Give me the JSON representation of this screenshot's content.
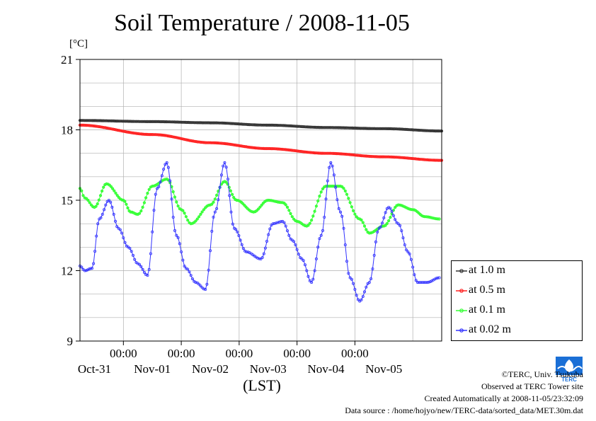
{
  "chart_data": {
    "type": "line",
    "title": "Soil Temperature / 2008-11-05",
    "unit_label": "[°C]",
    "xlabel": "(LST)",
    "ylim": [
      9,
      21
    ],
    "yticks": [
      9,
      12,
      15,
      18,
      21
    ],
    "xlim": [
      "2008-10-30T18:00",
      "2008-11-05T23:59"
    ],
    "x_tick_time_labels": [
      "00:00",
      "00:00",
      "00:00",
      "00:00",
      "00:00"
    ],
    "x_date_labels": [
      "Oct-31",
      "Nov-01",
      "Nov-02",
      "Nov-03",
      "Nov-04",
      "Nov-05"
    ],
    "grid": true,
    "legend_position": "right",
    "series": [
      {
        "name": "at 1.0 m",
        "color": "#333333",
        "x": [
          "2008-10-30T18:00",
          "2008-11-01T00:00",
          "2008-11-02T00:00",
          "2008-11-03T00:00",
          "2008-11-04T00:00",
          "2008-11-05T00:00",
          "2008-11-05T23:59"
        ],
        "y": [
          18.4,
          18.35,
          18.3,
          18.2,
          18.1,
          18.05,
          17.95
        ]
      },
      {
        "name": "at 0.5 m",
        "color": "#ff2020",
        "x": [
          "2008-10-30T18:00",
          "2008-11-01T00:00",
          "2008-11-02T00:00",
          "2008-11-03T00:00",
          "2008-11-04T00:00",
          "2008-11-05T00:00",
          "2008-11-05T23:59"
        ],
        "y": [
          18.2,
          17.8,
          17.45,
          17.2,
          17.0,
          16.85,
          16.7
        ]
      },
      {
        "name": "at 0.1 m",
        "color": "#33ff33",
        "x": [
          "2008-10-30T18:00",
          "2008-10-30T20:00",
          "2008-10-31T00:00",
          "2008-10-31T05:00",
          "2008-10-31T12:00",
          "2008-10-31T15:00",
          "2008-10-31T18:00",
          "2008-11-01T00:00",
          "2008-11-01T06:00",
          "2008-11-01T12:00",
          "2008-11-01T16:00",
          "2008-11-02T00:00",
          "2008-11-02T06:00",
          "2008-11-02T11:00",
          "2008-11-02T18:00",
          "2008-11-03T00:00",
          "2008-11-03T06:00",
          "2008-11-03T12:00",
          "2008-11-03T16:00",
          "2008-11-04T00:00",
          "2008-11-04T06:00",
          "2008-11-04T14:00",
          "2008-11-04T18:00",
          "2008-11-05T00:00",
          "2008-11-05T06:00",
          "2008-11-05T12:00",
          "2008-11-05T17:00",
          "2008-11-05T23:00"
        ],
        "y": [
          15.5,
          15.1,
          14.7,
          15.7,
          15.0,
          14.5,
          14.4,
          15.6,
          15.9,
          14.6,
          14.0,
          14.8,
          15.8,
          15.0,
          14.5,
          15.0,
          14.9,
          14.1,
          13.9,
          15.6,
          15.6,
          14.2,
          13.6,
          13.9,
          14.8,
          14.6,
          14.3,
          14.2
        ]
      },
      {
        "name": "at 0.02 m",
        "color": "#3333ff",
        "x": [
          "2008-10-30T18:00",
          "2008-10-30T20:00",
          "2008-10-30T23:00",
          "2008-10-31T02:00",
          "2008-10-31T06:00",
          "2008-10-31T10:00",
          "2008-10-31T14:00",
          "2008-10-31T18:00",
          "2008-10-31T22:00",
          "2008-11-01T02:00",
          "2008-11-01T06:00",
          "2008-11-01T10:00",
          "2008-11-01T14:00",
          "2008-11-01T18:00",
          "2008-11-01T22:00",
          "2008-11-02T02:00",
          "2008-11-02T06:00",
          "2008-11-02T10:00",
          "2008-11-02T15:00",
          "2008-11-02T21:00",
          "2008-11-03T02:00",
          "2008-11-03T06:00",
          "2008-11-03T10:00",
          "2008-11-03T14:00",
          "2008-11-03T18:00",
          "2008-11-03T22:00",
          "2008-11-04T02:00",
          "2008-11-04T06:00",
          "2008-11-04T10:00",
          "2008-11-04T14:00",
          "2008-11-04T18:00",
          "2008-11-04T22:00",
          "2008-11-05T02:00",
          "2008-11-05T06:00",
          "2008-11-05T10:00",
          "2008-11-05T14:00",
          "2008-11-05T18:00",
          "2008-11-05T23:00"
        ],
        "y": [
          12.2,
          12.0,
          12.1,
          14.2,
          15.0,
          13.8,
          13.0,
          12.3,
          11.8,
          15.5,
          16.6,
          13.5,
          12.1,
          11.5,
          11.2,
          14.5,
          16.6,
          13.8,
          12.8,
          12.5,
          14.0,
          14.1,
          13.3,
          12.5,
          11.5,
          13.5,
          16.6,
          14.5,
          11.7,
          10.7,
          11.5,
          13.8,
          14.7,
          14.0,
          12.8,
          11.5,
          11.5,
          11.7
        ]
      }
    ]
  },
  "credits": {
    "copyright": "©TERC, Univ. Tsukuba",
    "observed": "Observed at TERC Tower site",
    "created": "Created Automatically at 2008-11-05/23:32:09",
    "source": "Data source : /home/hojyo/new/TERC-data/sorted_data/MET.30m.dat"
  },
  "logo": {
    "text": "TERC",
    "color": "#1a6fd6"
  }
}
